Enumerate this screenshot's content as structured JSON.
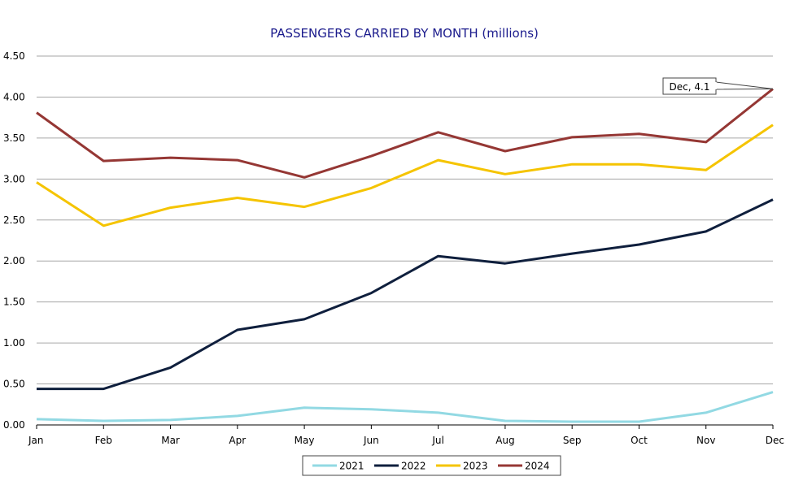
{
  "chart_data": {
    "type": "line",
    "title": "PASSENGERS CARRIED BY MONTH (millions)",
    "xlabel": "",
    "ylabel": "",
    "categories": [
      "Jan",
      "Feb",
      "Mar",
      "Apr",
      "May",
      "Jun",
      "Jul",
      "Aug",
      "Sep",
      "Oct",
      "Nov",
      "Dec"
    ],
    "ylim": [
      0,
      4.5
    ],
    "yticks": [
      "0.00",
      "0.50",
      "1.00",
      "1.50",
      "2.00",
      "2.50",
      "3.00",
      "3.50",
      "4.00",
      "4.50"
    ],
    "grid": true,
    "legend_position": "bottom",
    "series": [
      {
        "name": "2021",
        "color": "#92d9e3",
        "values": [
          0.07,
          0.05,
          0.06,
          0.11,
          0.21,
          0.19,
          0.15,
          0.05,
          0.04,
          0.04,
          0.15,
          0.4
        ]
      },
      {
        "name": "2022",
        "color": "#0f1f3d",
        "values": [
          0.44,
          0.44,
          0.7,
          1.16,
          1.29,
          1.61,
          2.06,
          1.97,
          2.09,
          2.2,
          2.36,
          2.75
        ]
      },
      {
        "name": "2023",
        "color": "#f5c400",
        "values": [
          2.96,
          2.43,
          2.65,
          2.77,
          2.66,
          2.89,
          3.23,
          3.06,
          3.18,
          3.18,
          3.11,
          3.66
        ]
      },
      {
        "name": "2024",
        "color": "#953734",
        "values": [
          3.81,
          3.22,
          3.26,
          3.23,
          3.02,
          3.28,
          3.57,
          3.34,
          3.51,
          3.55,
          3.45,
          4.1
        ]
      }
    ],
    "annotation": {
      "text": "Dec, 4.1",
      "series": "2024",
      "category": "Dec"
    }
  }
}
